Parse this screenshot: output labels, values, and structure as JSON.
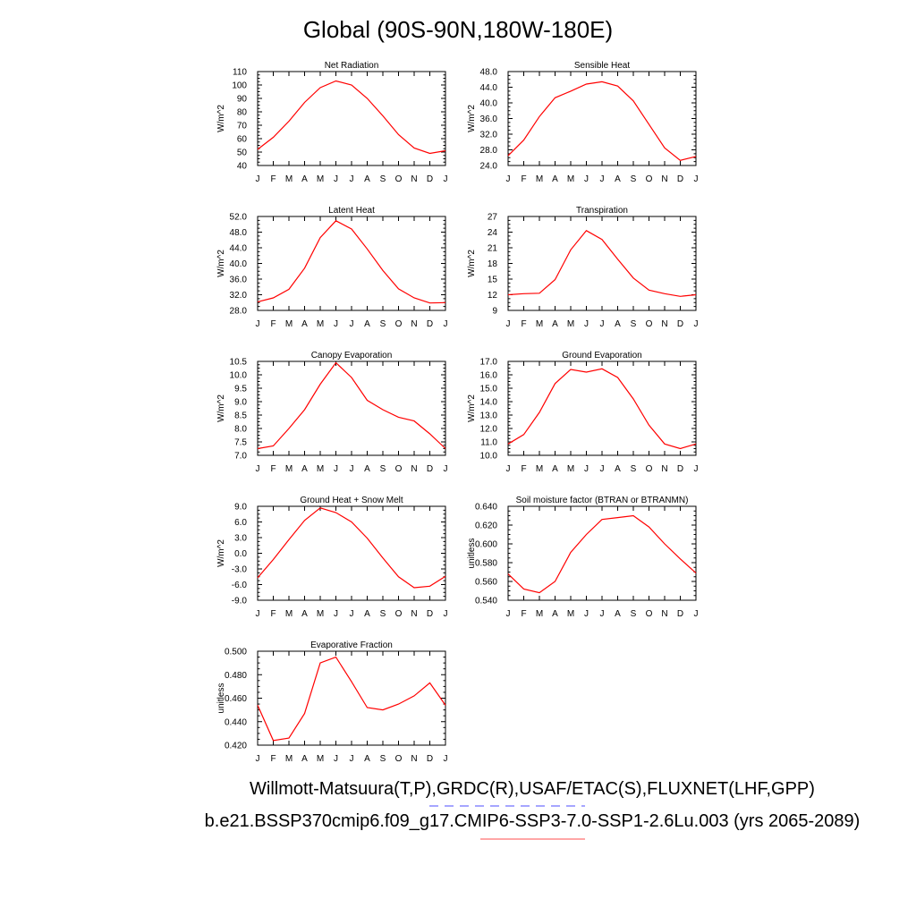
{
  "page": {
    "title": "Global (90S-90N,180W-180E)",
    "footer_line1": "Willmott-Matsuura(T,P),GRDC(R),USAF/ETAC(S),FLUXNET(LHF,GPP)",
    "footer_line2": "b.e21.BSSP370cmip6.f09_g17.CMIP6-SSP3-7.0-SSP1-2.6Lu.003 (yrs 2065-2089)",
    "line_color": "#ff0000",
    "legend_obs_color": "#8888ff",
    "legend_model_color": "#ff8888"
  },
  "chart_data": [
    {
      "type": "line",
      "title": "Net Radiation",
      "ylabel": "W/m^2",
      "categories": [
        "J",
        "F",
        "M",
        "A",
        "M",
        "J",
        "J",
        "A",
        "S",
        "O",
        "N",
        "D",
        "J"
      ],
      "ylim": [
        40,
        110
      ],
      "yticks": [
        "40",
        "50",
        "60",
        "70",
        "80",
        "90",
        "100",
        "110"
      ],
      "series": [
        {
          "values": [
            52,
            61,
            73,
            87,
            98,
            103,
            100,
            90,
            77,
            63,
            53,
            49,
            51
          ]
        }
      ]
    },
    {
      "type": "line",
      "title": "Sensible Heat",
      "ylabel": "W/m^2",
      "categories": [
        "J",
        "F",
        "M",
        "A",
        "M",
        "J",
        "J",
        "A",
        "S",
        "O",
        "N",
        "D",
        "J"
      ],
      "ylim": [
        24,
        48
      ],
      "yticks": [
        "24.0",
        "28.0",
        "32.0",
        "36.0",
        "40.0",
        "44.0",
        "48.0"
      ],
      "series": [
        {
          "values": [
            26.5,
            30.5,
            36.5,
            41.3,
            43.0,
            44.8,
            45.4,
            44.3,
            40.5,
            34.5,
            28.5,
            25.3,
            26.3
          ]
        }
      ]
    },
    {
      "type": "line",
      "title": "Latent Heat",
      "ylabel": "W/m^2",
      "categories": [
        "J",
        "F",
        "M",
        "A",
        "M",
        "J",
        "J",
        "A",
        "S",
        "O",
        "N",
        "D",
        "J"
      ],
      "ylim": [
        28,
        52
      ],
      "yticks": [
        "28.0",
        "32.0",
        "36.0",
        "40.0",
        "44.0",
        "48.0",
        "52.0"
      ],
      "series": [
        {
          "values": [
            30.2,
            31.2,
            33.4,
            38.8,
            46.6,
            50.9,
            48.8,
            43.7,
            38.2,
            33.5,
            31.2,
            29.9,
            30.0
          ]
        }
      ]
    },
    {
      "type": "line",
      "title": "Transpiration",
      "ylabel": "W/m^2",
      "categories": [
        "J",
        "F",
        "M",
        "A",
        "M",
        "J",
        "J",
        "A",
        "S",
        "O",
        "N",
        "D",
        "J"
      ],
      "ylim": [
        9,
        27
      ],
      "yticks": [
        "9",
        "12",
        "15",
        "18",
        "21",
        "24",
        "27"
      ],
      "series": [
        {
          "values": [
            12.0,
            12.2,
            12.3,
            14.9,
            20.6,
            24.3,
            22.6,
            18.8,
            15.2,
            12.9,
            12.2,
            11.7,
            12.0
          ]
        }
      ]
    },
    {
      "type": "line",
      "title": "Canopy Evaporation",
      "ylabel": "W/m^2",
      "categories": [
        "J",
        "F",
        "M",
        "A",
        "M",
        "J",
        "J",
        "A",
        "S",
        "O",
        "N",
        "D",
        "J"
      ],
      "ylim": [
        7.0,
        10.5
      ],
      "yticks": [
        "7.0",
        "7.5",
        "8.0",
        "8.5",
        "9.0",
        "9.5",
        "10.0",
        "10.5"
      ],
      "series": [
        {
          "values": [
            7.25,
            7.35,
            8.0,
            8.7,
            9.65,
            10.45,
            9.9,
            9.05,
            8.7,
            8.42,
            8.28,
            7.8,
            7.25
          ]
        }
      ]
    },
    {
      "type": "line",
      "title": "Ground Evaporation",
      "ylabel": "W/m^2",
      "categories": [
        "J",
        "F",
        "M",
        "A",
        "M",
        "J",
        "J",
        "A",
        "S",
        "O",
        "N",
        "D",
        "J"
      ],
      "ylim": [
        10.0,
        17.0
      ],
      "yticks": [
        "10.0",
        "11.0",
        "12.0",
        "13.0",
        "14.0",
        "15.0",
        "16.0",
        "17.0"
      ],
      "series": [
        {
          "values": [
            10.85,
            11.55,
            13.2,
            15.35,
            16.4,
            16.2,
            16.45,
            15.8,
            14.2,
            12.25,
            10.85,
            10.5,
            10.85
          ]
        }
      ]
    },
    {
      "type": "line",
      "title": "Ground Heat + Snow Melt",
      "ylabel": "W/m^2",
      "categories": [
        "J",
        "F",
        "M",
        "A",
        "M",
        "J",
        "J",
        "A",
        "S",
        "O",
        "N",
        "D",
        "J"
      ],
      "ylim": [
        -9,
        9
      ],
      "yticks": [
        "-9.0",
        "-6.0",
        "-3.0",
        "0.0",
        "3.0",
        "6.0",
        "9.0"
      ],
      "series": [
        {
          "values": [
            -4.7,
            -1.2,
            2.6,
            6.3,
            8.7,
            7.8,
            6.0,
            2.9,
            -0.9,
            -4.5,
            -6.6,
            -6.3,
            -4.4
          ]
        }
      ]
    },
    {
      "type": "line",
      "title": "Soil moisture factor (BTRAN or BTRANMN)",
      "ylabel": "unitless",
      "categories": [
        "J",
        "F",
        "M",
        "A",
        "M",
        "J",
        "J",
        "A",
        "S",
        "O",
        "N",
        "D",
        "J"
      ],
      "ylim": [
        0.54,
        0.64
      ],
      "yticks": [
        "0.540",
        "0.560",
        "0.580",
        "0.600",
        "0.620",
        "0.640"
      ],
      "series": [
        {
          "values": [
            0.568,
            0.552,
            0.548,
            0.56,
            0.591,
            0.61,
            0.626,
            0.628,
            0.63,
            0.618,
            0.6,
            0.584,
            0.569
          ]
        }
      ]
    },
    {
      "type": "line",
      "title": "Evaporative Fraction",
      "ylabel": "unitless",
      "categories": [
        "J",
        "F",
        "M",
        "A",
        "M",
        "J",
        "J",
        "A",
        "S",
        "O",
        "N",
        "D",
        "J"
      ],
      "ylim": [
        0.42,
        0.5
      ],
      "yticks": [
        "0.420",
        "0.440",
        "0.460",
        "0.480",
        "0.500"
      ],
      "series": [
        {
          "values": [
            0.454,
            0.424,
            0.426,
            0.447,
            0.49,
            0.495,
            0.474,
            0.452,
            0.45,
            0.455,
            0.462,
            0.473,
            0.454
          ]
        }
      ]
    }
  ]
}
